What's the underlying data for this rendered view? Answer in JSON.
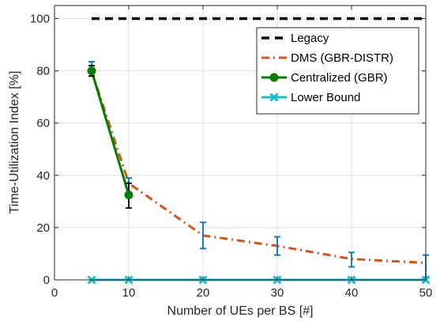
{
  "chart_data": {
    "type": "line",
    "xlabel": "Number of UEs per BS [#]",
    "ylabel": "Time-Utilization Index [%]",
    "xlim": [
      0,
      50
    ],
    "ylim": [
      0,
      105
    ],
    "xticks": [
      0,
      10,
      20,
      30,
      40,
      50
    ],
    "yticks": [
      0,
      20,
      40,
      60,
      80,
      100
    ],
    "grid": true,
    "legend_position": "top-right",
    "series": [
      {
        "name": "Legacy",
        "color": "#000000",
        "style": "dashed",
        "marker": "none",
        "x": [
          5,
          10,
          20,
          30,
          40,
          50
        ],
        "y": [
          100,
          100,
          100,
          100,
          100,
          100
        ]
      },
      {
        "name": "DMS (GBR-DISTR)",
        "color": "#D95319",
        "style": "dashdot",
        "marker": "none",
        "x": [
          5,
          10,
          20,
          30,
          40,
          50
        ],
        "y": [
          80,
          37,
          17,
          13,
          8,
          6.5
        ],
        "errors": [
          {
            "x": 5,
            "low": 78,
            "high": 83.5
          },
          {
            "x": 10,
            "low": 32,
            "high": 39
          },
          {
            "x": 20,
            "low": 12,
            "high": 22
          },
          {
            "x": 30,
            "low": 9.5,
            "high": 16.5
          },
          {
            "x": 40,
            "low": 5,
            "high": 10.5
          },
          {
            "x": 50,
            "low": 1,
            "high": 9.5
          }
        ],
        "error_color": "#0072BD"
      },
      {
        "name": "Centralized (GBR)",
        "color": "#008000",
        "style": "solid",
        "marker": "circle",
        "x": [
          5,
          10
        ],
        "y": [
          80,
          32.5
        ],
        "errors": [
          {
            "x": 5,
            "low": 78,
            "high": 82
          },
          {
            "x": 10,
            "low": 27.5,
            "high": 37
          }
        ],
        "error_color": "#000000"
      },
      {
        "name": "Lower Bound",
        "color": "#17BECF",
        "style": "solid",
        "marker": "x",
        "x": [
          5,
          10,
          20,
          30,
          40,
          50
        ],
        "y": [
          0,
          0,
          0,
          0,
          0,
          0
        ]
      }
    ]
  }
}
